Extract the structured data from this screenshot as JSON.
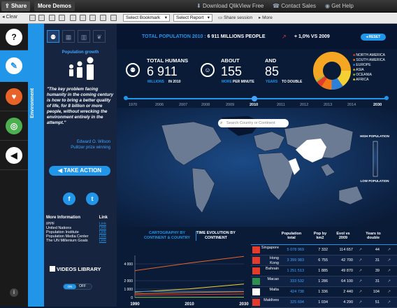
{
  "topbar": {
    "share": "Share",
    "more_demos": "More Demos",
    "download": "Download QlikView Free",
    "contact": "Contact Sales",
    "help": "Get Help"
  },
  "toolbar": {
    "clear": "Clear",
    "select_bookmark": "Select Bookmark",
    "select_report": "Select Report",
    "share_session": "Share session",
    "more": "More"
  },
  "env_strip": {
    "label": "Environment"
  },
  "sidepanel": {
    "title": "Population growth",
    "quote": "\"The key problem facing humanity in the coming century is how to bring a better quality of life, for 8 billion or more people, without wrecking the environment entirely in the attempt.\"",
    "author": "Edward O. Wilson",
    "author_sub": "Pulitzer prize winning",
    "take_action": "TAKE ACTION",
    "info_header": "More Information",
    "link_header": "Link",
    "info_rows": [
      {
        "name": "IPPF",
        "link": "Link"
      },
      {
        "name": "United Nations",
        "link": "Link"
      },
      {
        "name": "Population Institute",
        "link": "Link"
      },
      {
        "name": "Population Media Center",
        "link": "Link"
      },
      {
        "name": "The UN Millenium Goals",
        "link": "Link"
      }
    ],
    "videos": "VIDEOS LIBRARY",
    "toggle_on": "ON",
    "toggle_off": "OFF"
  },
  "main": {
    "title_prefix": "TOTAL POPULATION 2010 :",
    "title_value": "6 911 MILLIONS PEOPLE",
    "change": "+ 1,0% VS 2009",
    "reset": "RESET",
    "total_humans_label": "TOTAL HUMANS",
    "total_humans": "6 911",
    "millions": "MILLIONS",
    "in_2010": "IN 2010",
    "about_label": "ABOUT",
    "about_value": "155",
    "more": "MORE",
    "per_minute": "PER MINUTE",
    "and_label": "AND",
    "and_value": "85",
    "years": "YEARS",
    "to_double": "TO DOUBLE",
    "legend": [
      {
        "name": "NORTH AMERICA",
        "color": "#e53b2a"
      },
      {
        "name": "SOUTH AMERICA",
        "color": "#f07a1a"
      },
      {
        "name": "EUROPE",
        "color": "#2e7fd8"
      },
      {
        "name": "ASIA",
        "color": "#f5a623"
      },
      {
        "name": "OCEANIA",
        "color": "#8bc34a"
      },
      {
        "name": "AFRICA",
        "color": "#f5d033"
      }
    ],
    "years_timeline": [
      "1970",
      "2006",
      "2007",
      "2008",
      "2009",
      "2010",
      "2011",
      "2012",
      "2013",
      "2014",
      "2030"
    ],
    "search_placeholder": "Search Country or Continent",
    "high_population": "HIGH POPULATION",
    "low_population": "LOW POPULATION",
    "tab_cartography": "CARTOGRAPHY BY CONTINENT & COUNTRY",
    "tab_time": "TIME EVOLUTION BY CONTINENT"
  },
  "chart_data": {
    "type": "line",
    "x": [
      1990,
      2010,
      2030
    ],
    "xticks": [
      "1990",
      "2010",
      "2030"
    ],
    "yticks": [
      "0",
      "1 000",
      "2 000",
      "4 000"
    ],
    "ylim": [
      0,
      5000
    ],
    "series": [
      {
        "color": "#e8622a",
        "values": [
          3200,
          4100,
          4900
        ]
      },
      {
        "color": "#f5d033",
        "values": [
          640,
          1030,
          1600
        ]
      },
      {
        "color": "#2e7fd8",
        "values": [
          720,
          740,
          730
        ]
      },
      {
        "color": "#f07a1a",
        "values": [
          440,
          590,
          690
        ]
      },
      {
        "color": "#e53b2a",
        "values": [
          280,
          350,
          420
        ]
      },
      {
        "color": "#8bc34a",
        "values": [
          27,
          36,
          45
        ]
      }
    ]
  },
  "table": {
    "headers": [
      "Population total",
      "Pop by km2",
      "Evol vs 2009",
      "Years to double"
    ],
    "rows": [
      {
        "country": "Singapore",
        "total": "5 078 969",
        "density": "7 332",
        "evol": "114 657",
        "years": "44"
      },
      {
        "country": "Hong Kong",
        "total": "3 399 983",
        "density": "6 755",
        "evol": "42 700",
        "years": "31"
      },
      {
        "country": "Bahrain",
        "total": "1 251 513",
        "density": "1 885",
        "evol": "49 870",
        "years": "39"
      },
      {
        "country": "Macao",
        "total": "333 532",
        "density": "1 286",
        "evol": "64 100",
        "years": "31"
      },
      {
        "country": "Malta",
        "total": "424 738",
        "density": "1 336",
        "evol": "2 440",
        "years": "104"
      },
      {
        "country": "Maldives",
        "total": "325 694",
        "density": "1 034",
        "evol": "4 290",
        "years": "51"
      }
    ]
  }
}
